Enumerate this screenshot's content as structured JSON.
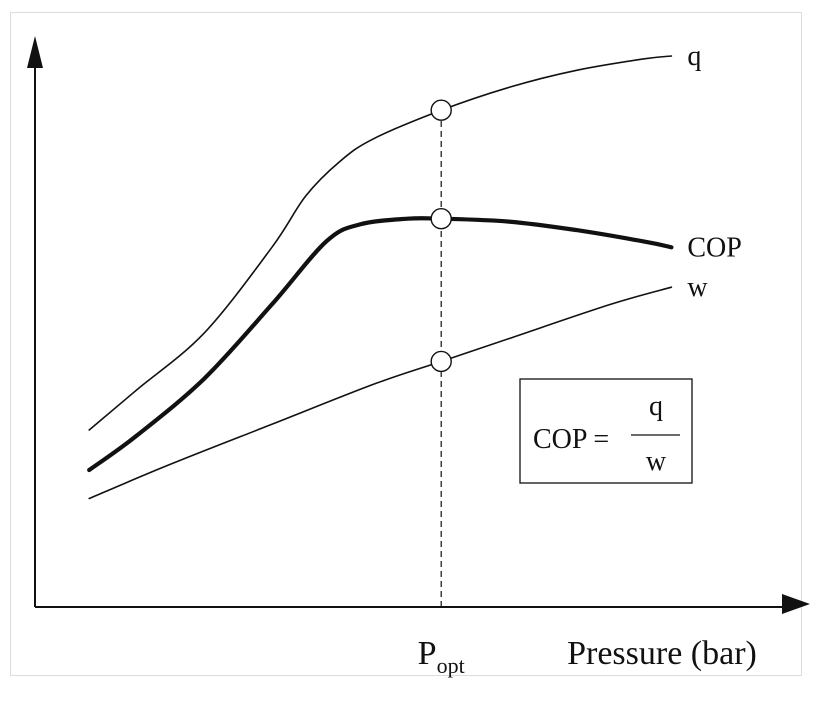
{
  "chart_data": {
    "type": "line",
    "title": "",
    "xlabel": "Pressure (bar)",
    "ylabel": "",
    "xlim": [
      0,
      100
    ],
    "ylim": [
      0,
      100
    ],
    "grid": false,
    "optimum": {
      "x": 60,
      "label_main": "P",
      "label_sub": "opt"
    },
    "series": [
      {
        "name": "q",
        "label": "q",
        "x": [
          8,
          15,
          25,
          35,
          40,
          45,
          50,
          60,
          70,
          80,
          90,
          94
        ],
        "y": [
          31,
          38,
          48,
          63,
          72,
          78,
          82,
          87,
          91,
          94,
          96,
          96.5
        ],
        "weight": "thin"
      },
      {
        "name": "COP",
        "label": "COP",
        "x": [
          8,
          15,
          25,
          35,
          43,
          48,
          55,
          60,
          70,
          80,
          90,
          94
        ],
        "y": [
          24,
          30,
          40,
          53,
          64,
          67,
          68,
          68,
          67.5,
          66,
          64,
          63
        ],
        "weight": "bold"
      },
      {
        "name": "w",
        "label": "w",
        "x": [
          8,
          20,
          35,
          50,
          60,
          70,
          85,
          94
        ],
        "y": [
          19,
          25,
          32,
          39,
          43,
          47,
          53,
          56
        ],
        "weight": "thin"
      }
    ],
    "formula": {
      "lhs": "COP =",
      "numerator": "q",
      "denominator": "w"
    }
  }
}
